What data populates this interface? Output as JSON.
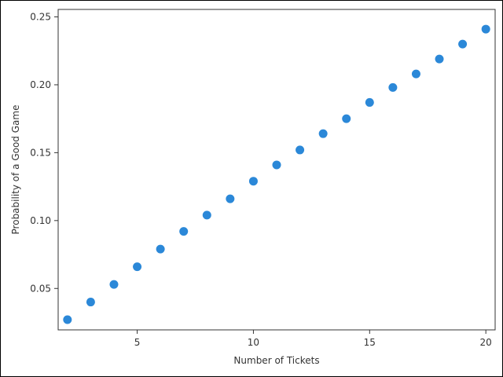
{
  "chart_data": {
    "type": "scatter",
    "title": "",
    "xlabel": "Number of Tickets",
    "ylabel": "Probability of a Good Game",
    "x": [
      2,
      3,
      4,
      5,
      6,
      7,
      8,
      9,
      10,
      11,
      12,
      13,
      14,
      15,
      16,
      17,
      18,
      19,
      20
    ],
    "y": [
      0.027,
      0.04,
      0.053,
      0.066,
      0.079,
      0.092,
      0.104,
      0.116,
      0.129,
      0.141,
      0.152,
      0.164,
      0.175,
      0.187,
      0.198,
      0.208,
      0.219,
      0.23,
      0.241
    ],
    "xlim": [
      1.6,
      20.4
    ],
    "ylim": [
      0.0195,
      0.2555
    ],
    "xticks": [
      5,
      10,
      15,
      20
    ],
    "yticks": [
      0.05,
      0.1,
      0.15,
      0.2,
      0.25
    ],
    "xtick_labels": [
      "5",
      "10",
      "15",
      "20"
    ],
    "ytick_labels": [
      "0.05",
      "0.10",
      "0.15",
      "0.20",
      "0.25"
    ],
    "grid": false,
    "legend": "none",
    "marker_color": "#2b88d8"
  }
}
